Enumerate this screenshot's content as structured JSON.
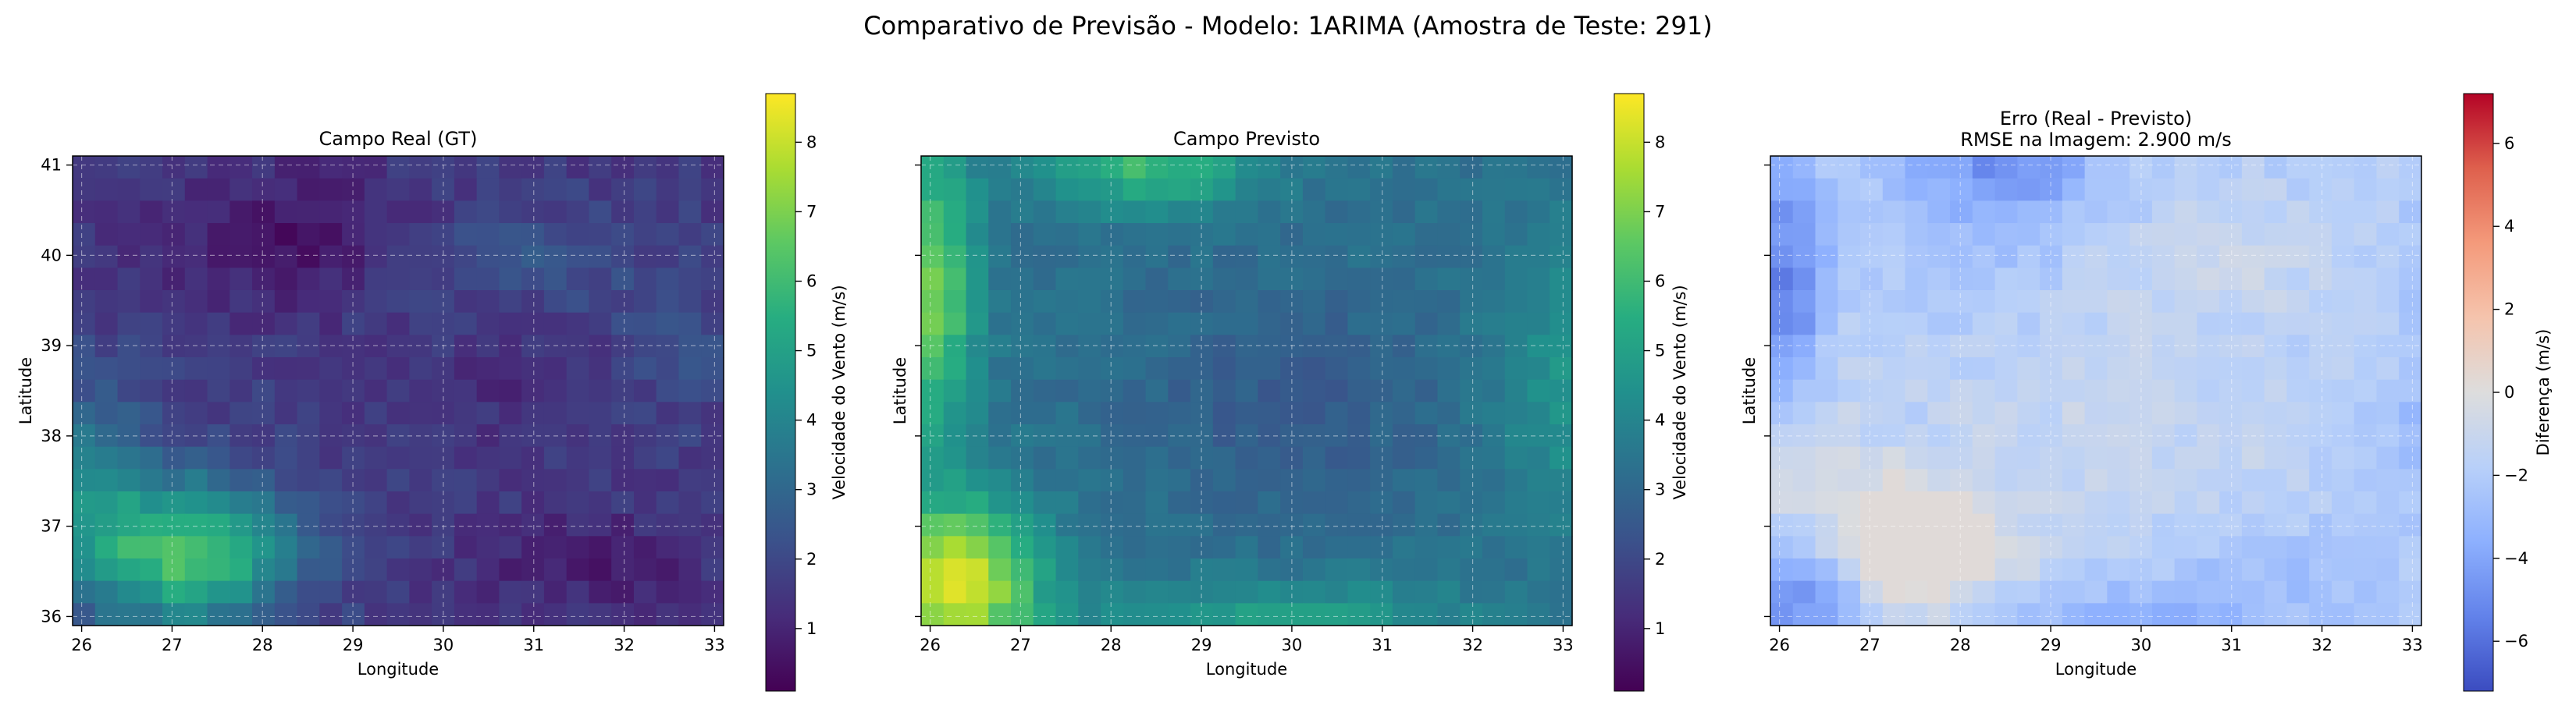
{
  "figure": {
    "suptitle": "Comparativo de Previsão - Modelo: 1ARIMA (Amostra de Teste: 291)"
  },
  "chart_data": [
    {
      "type": "heatmap",
      "title": "Campo Real (GT)",
      "xlabel": "Longitude",
      "ylabel": "Latitude",
      "xlim": [
        25.9,
        33.1
      ],
      "ylim": [
        35.9,
        41.1
      ],
      "xticks": [
        "26",
        "27",
        "28",
        "29",
        "30",
        "31",
        "32",
        "33"
      ],
      "yticks": [
        "36",
        "37",
        "38",
        "39",
        "40",
        "41"
      ],
      "grid": true,
      "colormap": "viridis",
      "colorbar": {
        "label": "Velocidade do Vento (m/s)",
        "range": [
          0.1,
          8.7
        ],
        "ticks": [
          "1",
          "2",
          "3",
          "4",
          "5",
          "6",
          "7",
          "8"
        ]
      },
      "grid_size": [
        29,
        21
      ],
      "field_summary": "Low wind (0.5–2.5 m/s) over most of the domain; a high-wind tongue (5–7 m/s) in the south-west corner around 26.5–28°E, 36–37.5°N; minima near 28.8°E 39.9°N and 31.5–32.8°E 36.3–36.9°N."
    },
    {
      "type": "heatmap",
      "title": "Campo Previsto",
      "xlabel": "Longitude",
      "ylabel": "Latitude",
      "xlim": [
        25.9,
        33.1
      ],
      "ylim": [
        35.9,
        41.1
      ],
      "xticks": [
        "26",
        "27",
        "28",
        "29",
        "30",
        "31",
        "32",
        "33"
      ],
      "yticks": [],
      "grid": true,
      "colormap": "viridis",
      "colorbar": {
        "label": "Velocidade do Vento (m/s)",
        "range": [
          0.1,
          8.7
        ],
        "ticks": [
          "1",
          "2",
          "3",
          "4",
          "5",
          "6",
          "7",
          "8"
        ]
      },
      "grid_size": [
        29,
        21
      ],
      "field_summary": "Predicted field 2.5–4.5 m/s over the interior, higher (≈5–6.5 m/s) along the northern edge and the east, maxima ≈8–8.5 m/s along the western edge and a south-west maximum around 26–27°E, 36–37.5°N."
    },
    {
      "type": "heatmap",
      "title": "Erro (Real - Previsto)",
      "subtitle": "RMSE na Imagem: 2.900 m/s",
      "xlabel": "Longitude",
      "ylabel": "Latitude",
      "xlim": [
        25.9,
        33.1
      ],
      "ylim": [
        35.9,
        41.1
      ],
      "xticks": [
        "26",
        "27",
        "28",
        "29",
        "30",
        "31",
        "32",
        "33"
      ],
      "yticks": [],
      "grid": true,
      "colormap": "coolwarm",
      "colorbar": {
        "label": "Diferença (m/s)",
        "range": [
          -7.2,
          7.2
        ],
        "ticks": [
          "6",
          "4",
          "2",
          "0",
          "−2",
          "−4",
          "−6"
        ]
      },
      "grid_size": [
        29,
        21
      ],
      "field_summary": "Error negative everywhere: about −6 m/s in the north-west corner and along the northern edge, −2 to −4 across most of the domain, near 0 in patches around 30–31°E 40°N and 29–30.5°E 36.5°N."
    }
  ]
}
